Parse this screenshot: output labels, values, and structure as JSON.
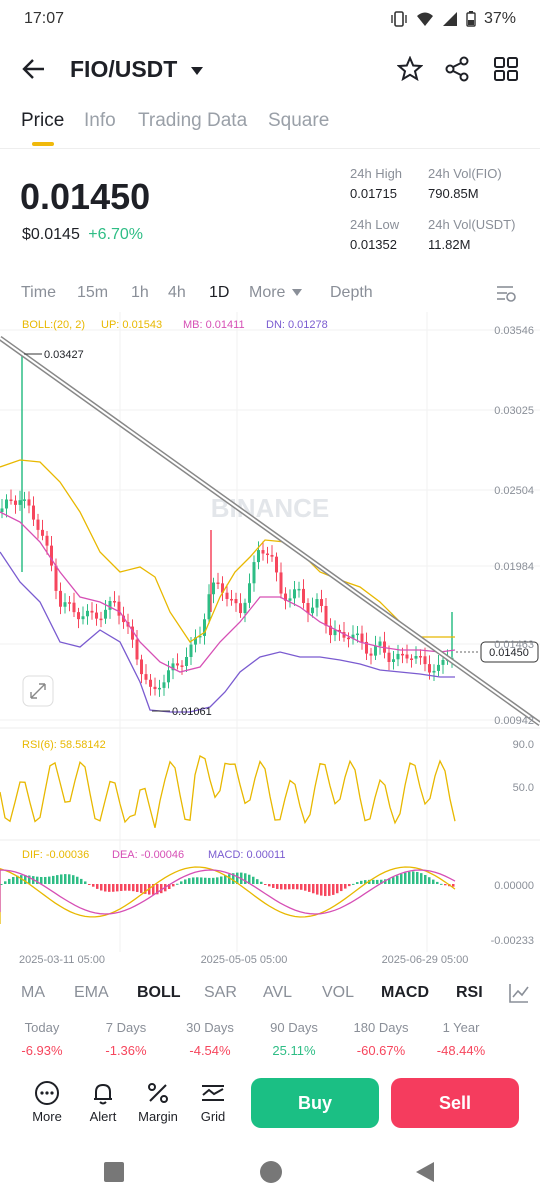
{
  "status_bar": {
    "time": "17:07",
    "battery": "37%"
  },
  "header": {
    "pair": "FIO/USDT",
    "icons": [
      "back-arrow-icon",
      "dropdown-caret-icon",
      "star-icon",
      "share-icon",
      "grid-icon"
    ]
  },
  "tabs": [
    "Price",
    "Info",
    "Trading Data",
    "Square"
  ],
  "price": {
    "last": "0.01450",
    "usd": "$0.0145",
    "change": "+6.70%",
    "high_label": "24h High",
    "high": "0.01715",
    "low_label": "24h Low",
    "low": "0.01352",
    "vol_fio_label": "24h Vol(FIO)",
    "vol_fio": "790.85M",
    "vol_usdt_label": "24h Vol(USDT)",
    "vol_usdt": "11.82M"
  },
  "intervals": {
    "time": "Time",
    "m15": "15m",
    "h1": "1h",
    "h4": "4h",
    "d1": "1D",
    "more": "More",
    "depth": "Depth"
  },
  "chart": {
    "boll": {
      "label": "BOLL:(20, 2)",
      "up": "UP: 0.01543",
      "mb": "MB: 0.01411",
      "dn": "DN: 0.01278"
    },
    "price_axis": [
      "0.03546",
      "0.03025",
      "0.02504",
      "0.01984",
      "0.01463",
      "0.00942"
    ],
    "high_marker": "0.03427",
    "low_marker": "0.01061",
    "current_tag": "0.01450",
    "watermark": "BINANCE",
    "rsi": {
      "label": "RSI(6): 58.58142",
      "axis_top": "90.0",
      "axis_mid": "50.0"
    },
    "macd": {
      "dif": "DIF: -0.00036",
      "dea": "DEA: -0.00046",
      "macd": "MACD: 0.00011",
      "axis_top": "0.00000",
      "axis_bottom": "-0.00233"
    },
    "dates": [
      "2025-03-11 05:00",
      "2025-05-05 05:00",
      "2025-06-29 05:00"
    ],
    "colors": {
      "up": "#2ebd85",
      "down": "#f6465d",
      "boll_up": "#e8b800",
      "boll_mb": "#d64fb5",
      "boll_dn": "#7a5bd0"
    }
  },
  "indicators": [
    "MA",
    "EMA",
    "BOLL",
    "SAR",
    "AVL",
    "VOL",
    "MACD",
    "RSI"
  ],
  "performance": [
    {
      "label": "Today",
      "value": "-6.93%"
    },
    {
      "label": "7 Days",
      "value": "-1.36%"
    },
    {
      "label": "30 Days",
      "value": "-4.54%"
    },
    {
      "label": "90 Days",
      "value": "25.11%"
    },
    {
      "label": "180 Days",
      "value": "-60.67%"
    },
    {
      "label": "1 Year",
      "value": "-48.44%"
    }
  ],
  "bottom": {
    "more": "More",
    "alert": "Alert",
    "margin": "Margin",
    "grid": "Grid",
    "buy": "Buy",
    "sell": "Sell"
  }
}
